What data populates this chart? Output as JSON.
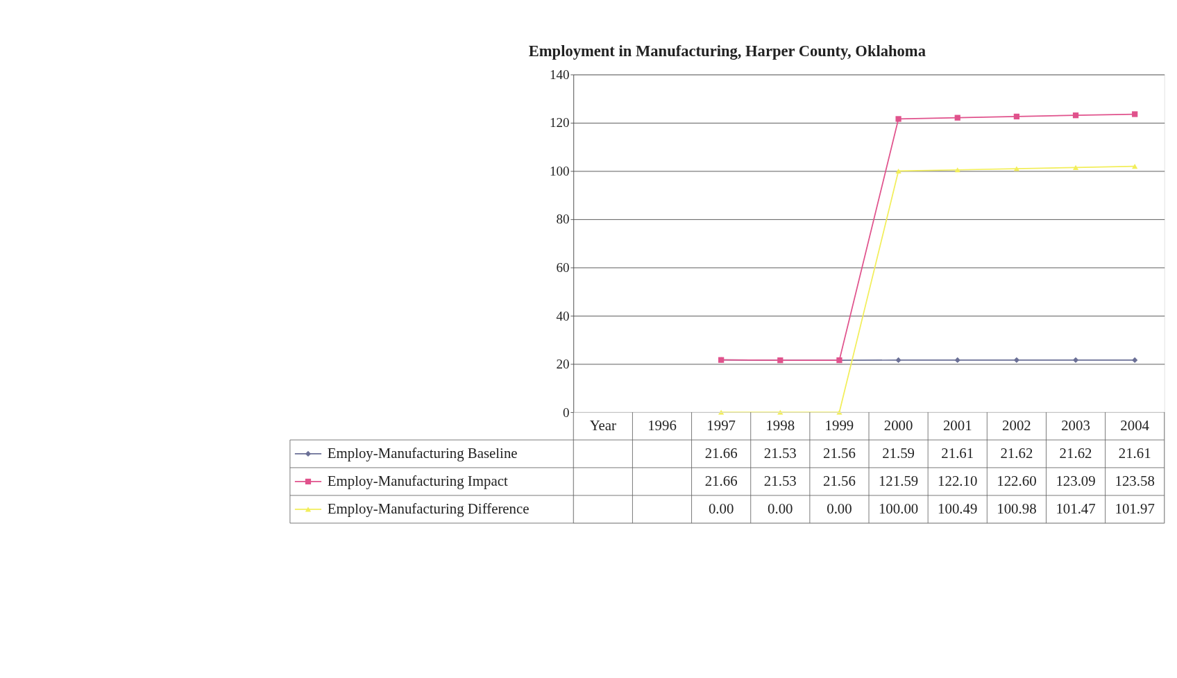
{
  "chart_data": {
    "type": "line",
    "title": "Employment in Manufacturing, Harper County, Oklahoma",
    "categories": [
      "Year",
      "1996",
      "1997",
      "1998",
      "1999",
      "2000",
      "2001",
      "2002",
      "2003",
      "2004"
    ],
    "series": [
      {
        "name": "Employ-Manufacturing Baseline",
        "color": "#6a6f96",
        "marker": "diamond",
        "values": [
          null,
          null,
          21.66,
          21.53,
          21.56,
          21.59,
          21.61,
          21.62,
          21.62,
          21.61
        ],
        "value_labels": [
          null,
          null,
          "21.66",
          "21.53",
          "21.56",
          "21.59",
          "21.61",
          "21.62",
          "21.62",
          "21.61"
        ]
      },
      {
        "name": "Employ-Manufacturing Impact",
        "color": "#e0528c",
        "marker": "square",
        "values": [
          null,
          null,
          21.66,
          21.53,
          21.56,
          121.59,
          122.1,
          122.6,
          123.09,
          123.58
        ],
        "value_labels": [
          null,
          null,
          "21.66",
          "21.53",
          "21.56",
          "121.59",
          "122.10",
          "122.60",
          "123.09",
          "123.58"
        ]
      },
      {
        "name": "Employ-Manufacturing Difference",
        "color": "#f2ee5a",
        "marker": "triangle",
        "values": [
          null,
          null,
          0.0,
          0.0,
          0.0,
          100.0,
          100.49,
          100.98,
          101.47,
          101.97
        ],
        "value_labels": [
          null,
          null,
          "0.00",
          "0.00",
          "0.00",
          "100.00",
          "100.49",
          "100.98",
          "101.47",
          "101.97"
        ]
      }
    ],
    "ylim": [
      0,
      140
    ],
    "yticks": [
      0,
      20,
      40,
      60,
      80,
      100,
      120,
      140
    ],
    "grid": "y",
    "legend": "bottom left"
  }
}
